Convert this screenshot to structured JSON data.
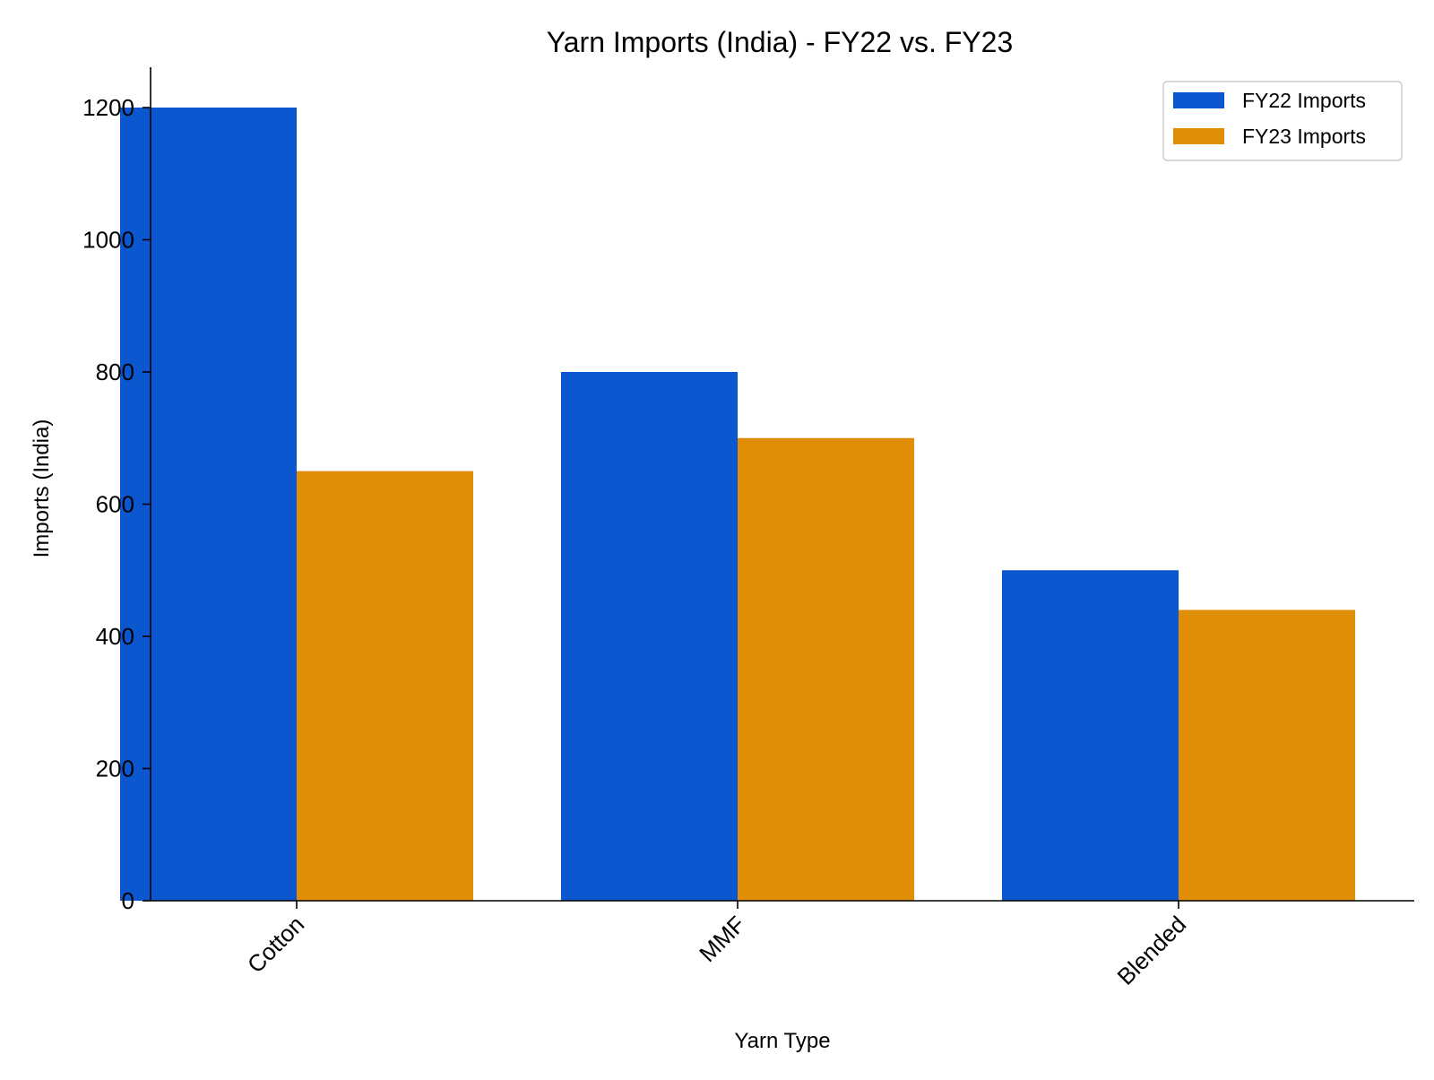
{
  "chart_data": {
    "type": "bar",
    "title": "Yarn Imports (India) - FY22 vs. FY23",
    "xlabel": "Yarn Type",
    "ylabel": "Imports (India)",
    "categories": [
      "Cotton",
      "MMF",
      "Blended"
    ],
    "series": [
      {
        "name": "FY22 Imports",
        "values": [
          1200,
          800,
          500
        ],
        "color": "#0b57d0"
      },
      {
        "name": "FY23 Imports",
        "values": [
          650,
          700,
          440
        ],
        "color": "#e08e05"
      }
    ],
    "ylim": [
      0,
      1260
    ],
    "yticks": [
      0,
      200,
      400,
      600,
      800,
      1000,
      1200
    ],
    "grid": false,
    "legend_position": "top-right"
  }
}
